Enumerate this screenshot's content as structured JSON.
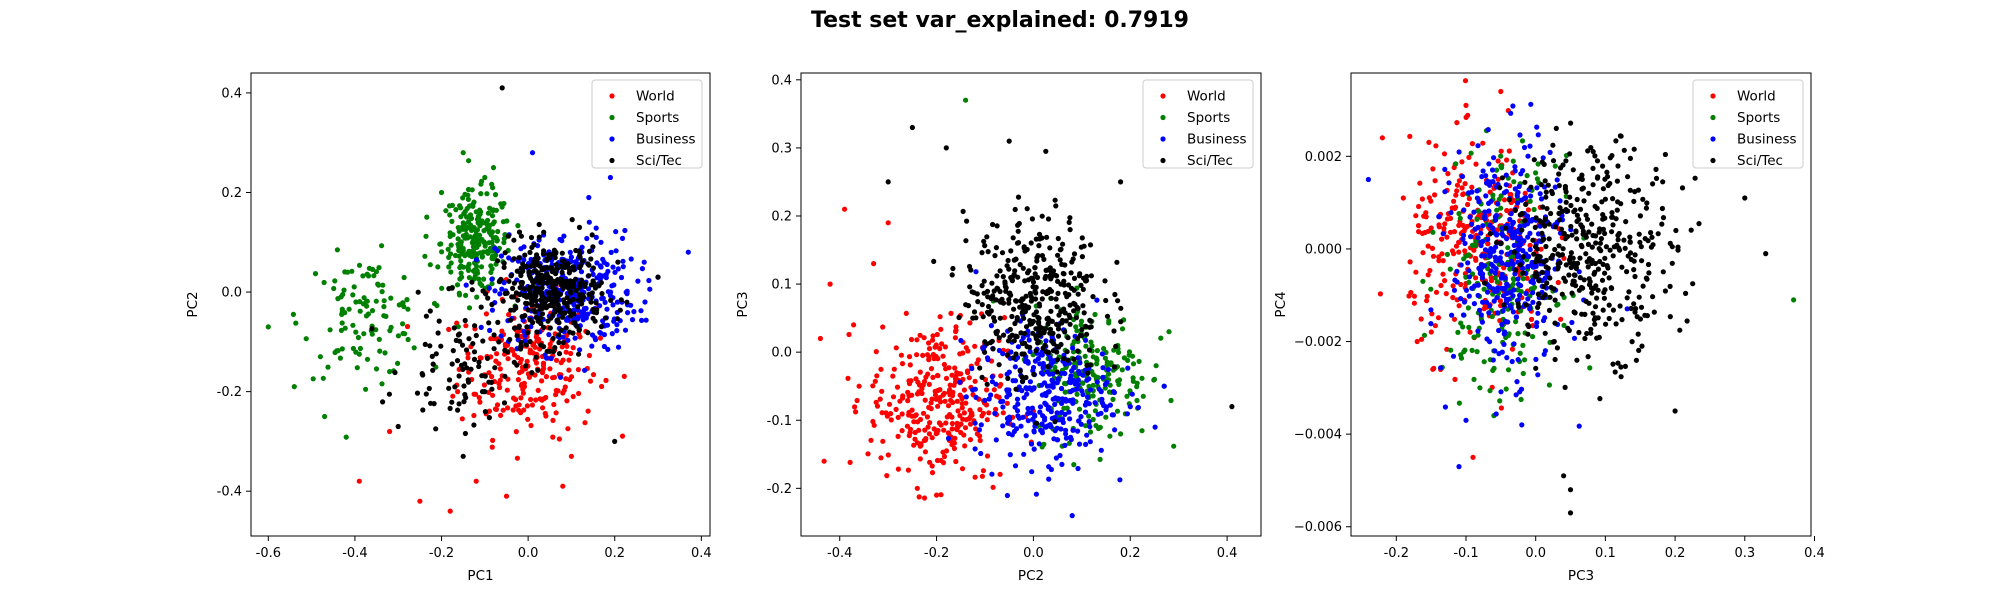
{
  "title": "Test set var_explained: 0.7919",
  "colors": {
    "World": "#ff0000",
    "Sports": "#008000",
    "Business": "#0000ff",
    "Sci/Tec": "#000000"
  },
  "chart_data": [
    {
      "type": "scatter",
      "title": "",
      "xlabel": "PC1",
      "ylabel": "PC2",
      "xlim": [
        -0.64,
        0.42
      ],
      "ylim": [
        -0.49,
        0.44
      ],
      "xticks": [
        "-0.6",
        "-0.4",
        "-0.2",
        "0.0",
        "0.2",
        "0.4"
      ],
      "xtick_values": [
        -0.6,
        -0.4,
        -0.2,
        0.0,
        0.2,
        0.4
      ],
      "yticks": [
        "-0.4",
        "-0.2",
        "0.0",
        "0.2",
        "0.4"
      ],
      "ytick_values": [
        -0.4,
        -0.2,
        0.0,
        0.2,
        0.4
      ],
      "legend": {
        "placement": "upper right",
        "entries": [
          "World",
          "Sports",
          "Business",
          "Sci/Tec"
        ]
      },
      "series": [
        {
          "name": "World",
          "clusters": [
            {
              "cx": 0.0,
              "cy": -0.15,
              "sx": 0.08,
              "sy": 0.07,
              "n": 240
            }
          ],
          "points": [
            [
              -0.39,
              -0.38
            ],
            [
              -0.25,
              -0.42
            ],
            [
              -0.18,
              -0.44
            ],
            [
              -0.05,
              -0.41
            ],
            [
              0.08,
              -0.39
            ],
            [
              -0.32,
              -0.28
            ],
            [
              0.1,
              -0.33
            ],
            [
              -0.12,
              -0.38
            ]
          ]
        },
        {
          "name": "Sports",
          "clusters": [
            {
              "cx": -0.12,
              "cy": 0.1,
              "sx": 0.04,
              "sy": 0.05,
              "n": 240
            },
            {
              "cx": -0.38,
              "cy": -0.05,
              "sx": 0.07,
              "sy": 0.06,
              "n": 110
            }
          ],
          "points": [
            [
              -0.6,
              -0.07
            ],
            [
              -0.54,
              -0.19
            ],
            [
              -0.47,
              -0.25
            ],
            [
              -0.15,
              0.28
            ],
            [
              -0.2,
              0.2
            ],
            [
              -0.08,
              0.25
            ],
            [
              -0.1,
              0.23
            ]
          ]
        },
        {
          "name": "Business",
          "clusters": [
            {
              "cx": 0.09,
              "cy": 0.0,
              "sx": 0.08,
              "sy": 0.06,
              "n": 360
            }
          ],
          "points": [
            [
              0.37,
              0.08
            ],
            [
              0.01,
              0.28
            ],
            [
              0.19,
              0.23
            ],
            [
              0.27,
              -0.02
            ],
            [
              0.3,
              0.03
            ],
            [
              0.14,
              0.19
            ]
          ]
        },
        {
          "name": "Sci/Tec",
          "clusters": [
            {
              "cx": 0.05,
              "cy": 0.0,
              "sx": 0.06,
              "sy": 0.05,
              "n": 380
            },
            {
              "cx": -0.15,
              "cy": -0.15,
              "sx": 0.07,
              "sy": 0.06,
              "n": 90
            }
          ],
          "points": [
            [
              -0.06,
              0.41
            ],
            [
              -0.15,
              -0.33
            ],
            [
              -0.3,
              -0.27
            ],
            [
              0.2,
              -0.3
            ],
            [
              -0.1,
              -0.2
            ],
            [
              0.3,
              0.03
            ]
          ]
        }
      ]
    },
    {
      "type": "scatter",
      "title": "",
      "xlabel": "PC2",
      "ylabel": "PC3",
      "xlim": [
        -0.48,
        0.47
      ],
      "ylim": [
        -0.27,
        0.41
      ],
      "xticks": [
        "-0.4",
        "-0.2",
        "0.0",
        "0.2",
        "0.4"
      ],
      "xtick_values": [
        -0.4,
        -0.2,
        0.0,
        0.2,
        0.4
      ],
      "yticks": [
        "-0.2",
        "-0.1",
        "0.0",
        "0.1",
        "0.2",
        "0.3",
        "0.4"
      ],
      "ytick_values": [
        -0.2,
        -0.1,
        0.0,
        0.1,
        0.2,
        0.3,
        0.4
      ],
      "legend": {
        "placement": "upper right",
        "entries": [
          "World",
          "Sports",
          "Business",
          "Sci/Tec"
        ]
      },
      "series": [
        {
          "name": "World",
          "clusters": [
            {
              "cx": -0.2,
              "cy": -0.07,
              "sx": 0.07,
              "sy": 0.06,
              "n": 320
            }
          ],
          "points": [
            [
              -0.42,
              0.1
            ],
            [
              -0.44,
              0.02
            ],
            [
              -0.36,
              -0.05
            ],
            [
              -0.33,
              0.13
            ],
            [
              -0.3,
              0.19
            ],
            [
              -0.39,
              0.21
            ],
            [
              -0.2,
              -0.21
            ]
          ]
        },
        {
          "name": "Sports",
          "clusters": [
            {
              "cx": 0.12,
              "cy": -0.03,
              "sx": 0.06,
              "sy": 0.05,
              "n": 200
            }
          ],
          "points": [
            [
              -0.14,
              0.37
            ],
            [
              0.28,
              0.03
            ],
            [
              0.27,
              -0.05
            ],
            [
              0.25,
              -0.04
            ],
            [
              0.18,
              -0.12
            ]
          ]
        },
        {
          "name": "Business",
          "clusters": [
            {
              "cx": 0.02,
              "cy": -0.06,
              "sx": 0.07,
              "sy": 0.05,
              "n": 320
            }
          ],
          "points": [
            [
              0.08,
              -0.24
            ],
            [
              0.2,
              -0.08
            ],
            [
              0.27,
              -0.05
            ],
            [
              -0.02,
              -0.15
            ]
          ]
        },
        {
          "name": "Sci/Tec",
          "clusters": [
            {
              "cx": 0.0,
              "cy": 0.08,
              "sx": 0.07,
              "sy": 0.06,
              "n": 380
            }
          ],
          "points": [
            [
              -0.25,
              0.33
            ],
            [
              -0.05,
              0.31
            ],
            [
              -0.18,
              0.3
            ],
            [
              0.41,
              -0.08
            ],
            [
              -0.3,
              0.25
            ],
            [
              0.18,
              0.25
            ]
          ]
        }
      ]
    },
    {
      "type": "scatter",
      "title": "",
      "xlabel": "PC3",
      "ylabel": "PC4",
      "xlim": [
        -0.265,
        0.395
      ],
      "ylim": [
        -0.0062,
        0.0038
      ],
      "xticks": [
        "-0.2",
        "-0.1",
        "0.0",
        "0.1",
        "0.2",
        "0.3",
        "0.4"
      ],
      "xtick_values": [
        -0.2,
        -0.1,
        0.0,
        0.1,
        0.2,
        0.3,
        0.4
      ],
      "yticks": [
        "−0.006",
        "−0.004",
        "−0.002",
        "0.000",
        "0.002"
      ],
      "ytick_values": [
        -0.006,
        -0.004,
        -0.002,
        0.0,
        0.002
      ],
      "legend": {
        "placement": "upper right",
        "entries": [
          "World",
          "Sports",
          "Business",
          "Sci/Tec"
        ]
      },
      "series": [
        {
          "name": "World",
          "clusters": [
            {
              "cx": -0.08,
              "cy": 0.0,
              "sx": 0.05,
              "sy": 0.0011,
              "n": 300
            }
          ],
          "points": [
            [
              -0.22,
              0.0024
            ],
            [
              -0.19,
              0.0011
            ],
            [
              -0.17,
              -0.002
            ],
            [
              -0.1,
              0.0031
            ],
            [
              -0.05,
              0.0034
            ],
            [
              -0.09,
              -0.0045
            ]
          ]
        },
        {
          "name": "Sports",
          "clusters": [
            {
              "cx": -0.05,
              "cy": -0.0005,
              "sx": 0.04,
              "sy": 0.0012,
              "n": 200
            }
          ],
          "points": [
            [
              0.37,
              -0.0011
            ],
            [
              -0.08,
              -0.003
            ],
            [
              -0.06,
              -0.0036
            ]
          ]
        },
        {
          "name": "Business",
          "clusters": [
            {
              "cx": -0.04,
              "cy": -0.0002,
              "sx": 0.04,
              "sy": 0.0012,
              "n": 380
            }
          ],
          "points": [
            [
              -0.24,
              0.0015
            ],
            [
              -0.11,
              -0.0047
            ],
            [
              -0.1,
              -0.0037
            ],
            [
              -0.02,
              -0.0038
            ]
          ]
        },
        {
          "name": "Sci/Tec",
          "clusters": [
            {
              "cx": 0.08,
              "cy": 0.0,
              "sx": 0.06,
              "sy": 0.0011,
              "n": 420
            }
          ],
          "points": [
            [
              0.05,
              -0.0057
            ],
            [
              0.05,
              -0.0052
            ],
            [
              0.04,
              -0.0049
            ],
            [
              0.3,
              0.0011
            ],
            [
              0.33,
              -0.0001
            ],
            [
              0.2,
              -0.0035
            ]
          ]
        }
      ]
    }
  ]
}
